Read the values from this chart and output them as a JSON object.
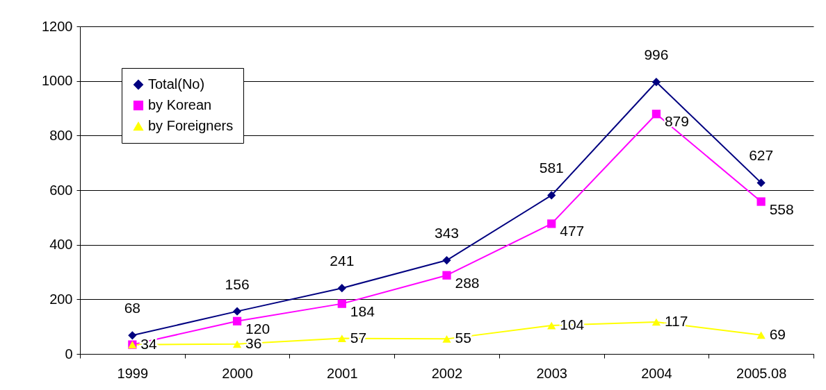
{
  "chart_data": {
    "type": "line",
    "categories": [
      "1999",
      "2000",
      "2001",
      "2002",
      "2003",
      "2004",
      "2005.08"
    ],
    "series": [
      {
        "name": "Total(No)",
        "color": "#000080",
        "marker": "diamond",
        "values": [
          68,
          156,
          241,
          343,
          581,
          996,
          627
        ],
        "value_labels": [
          "68",
          "156",
          "241",
          "343",
          "581",
          "996",
          "627"
        ]
      },
      {
        "name": "by Korean",
        "color": "#ff00ff",
        "marker": "square",
        "values": [
          34,
          120,
          184,
          288,
          477,
          879,
          558
        ],
        "value_labels": [
          null,
          "120",
          "184",
          "288",
          "477",
          "879",
          "558"
        ]
      },
      {
        "name": "by Foreigners",
        "color": "#ffff00",
        "marker": "triangle",
        "values": [
          34,
          36,
          57,
          55,
          104,
          117,
          69
        ],
        "value_labels": [
          "34",
          "36",
          "57",
          "55",
          "104",
          "117",
          "69"
        ]
      }
    ],
    "ylim": [
      0,
      1200
    ],
    "yticks": [
      0,
      200,
      400,
      600,
      800,
      1000,
      1200
    ],
    "grid": "y",
    "legend": "top left"
  }
}
